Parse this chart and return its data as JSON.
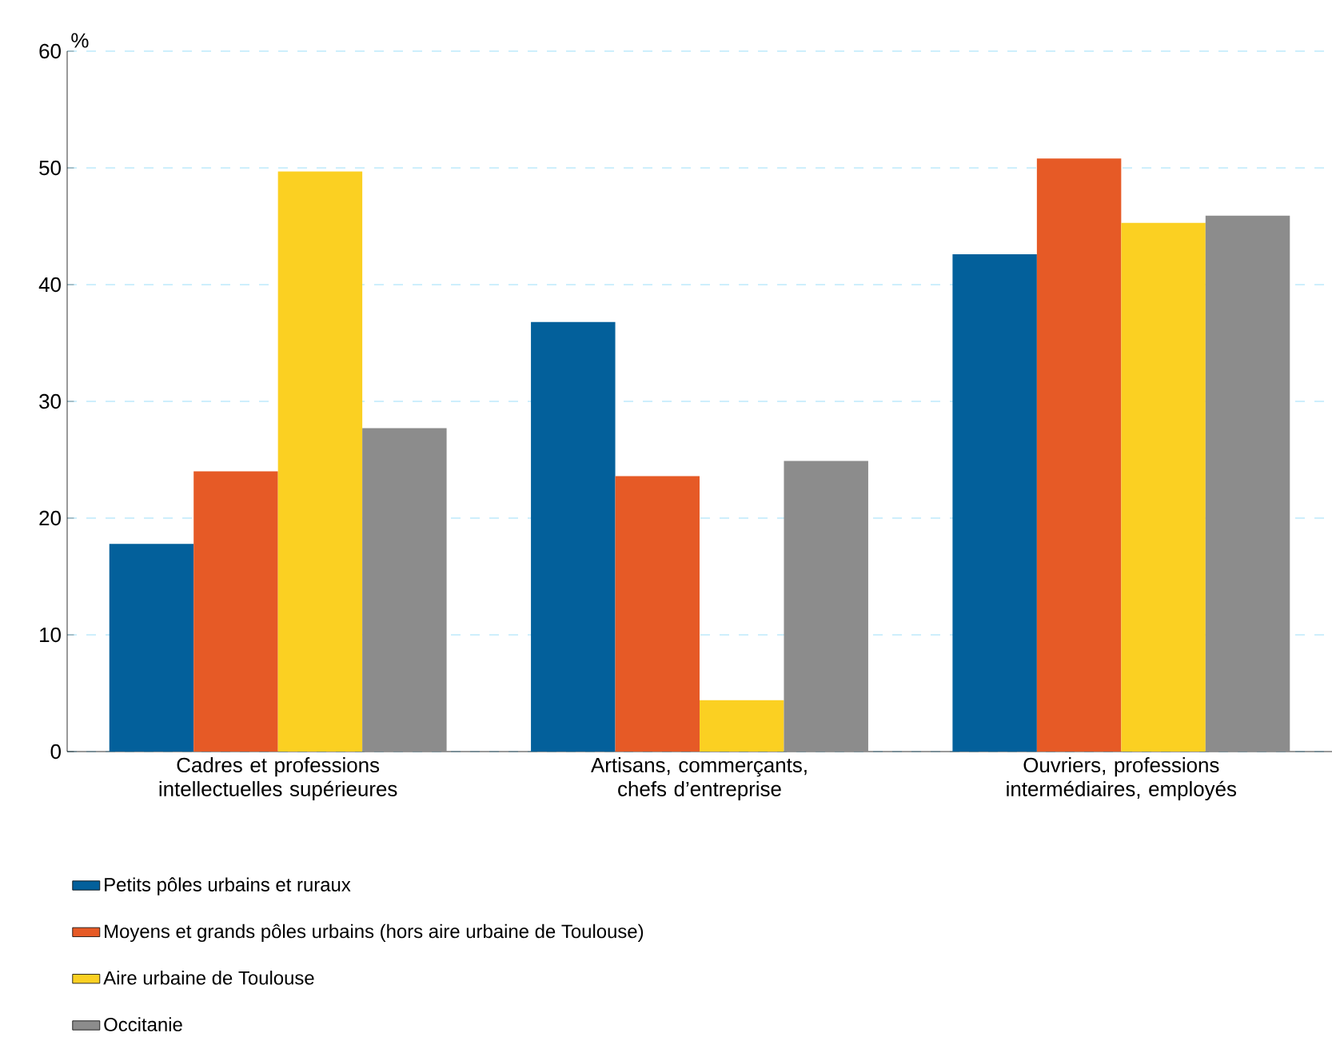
{
  "chart_data": {
    "type": "bar",
    "ylabel": "%",
    "categories": [
      "Cadres et professions intellectuelles supérieures",
      "Artisans, commerçants, chefs d’entreprise",
      "Ouvriers, professions intermédiaires, employés"
    ],
    "series": [
      {
        "name": "Petits pôles urbains et ruraux",
        "color": "#03609b",
        "values": [
          17.8,
          36.8,
          42.6
        ]
      },
      {
        "name": "Moyens et grands pôles urbains (hors aire urbaine de Toulouse)",
        "color": "#e65a26",
        "values": [
          24.0,
          23.6,
          50.8
        ]
      },
      {
        "name": "Aire urbaine de Toulouse",
        "color": "#fbd022",
        "values": [
          49.7,
          4.4,
          45.3
        ]
      },
      {
        "name": "Occitanie",
        "color": "#8c8c8c",
        "values": [
          27.7,
          24.9,
          45.9
        ]
      }
    ],
    "ylim": [
      0,
      60
    ],
    "yticks": [
      0,
      10,
      20,
      30,
      40,
      50,
      60
    ],
    "grid": "y",
    "legend": "bottom"
  }
}
